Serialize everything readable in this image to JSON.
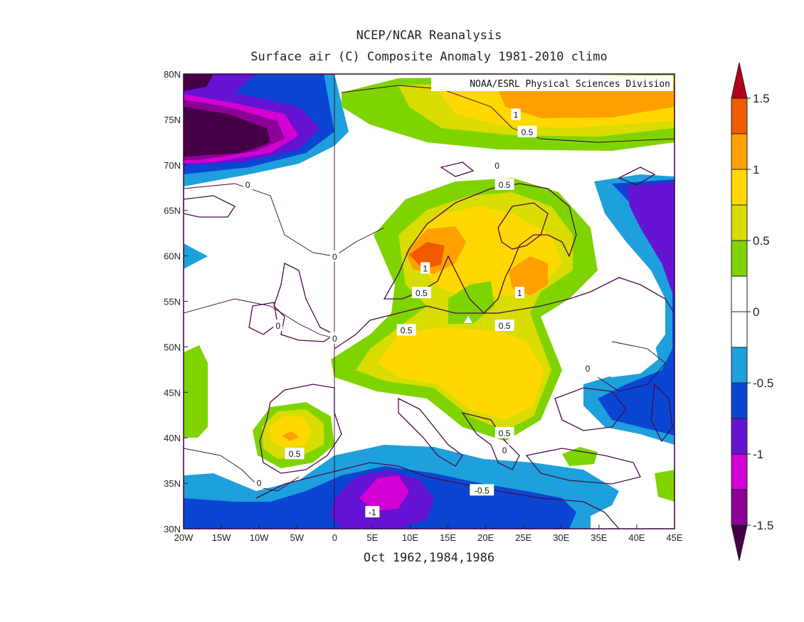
{
  "title": {
    "line1": "NCEP/NCAR Reanalysis",
    "line2": "Surface air (C) Composite Anomaly 1981-2010 climo"
  },
  "footer": "Oct 1962,1984,1986",
  "credit": "NOAA/ESRL Physical Sciences Division",
  "map": {
    "lon_ticks": [
      "20W",
      "15W",
      "10W",
      "5W",
      "0",
      "5E",
      "10E",
      "15E",
      "20E",
      "25E",
      "30E",
      "35E",
      "40E",
      "45E"
    ],
    "lat_ticks": [
      "80N",
      "75N",
      "70N",
      "65N",
      "60N",
      "55N",
      "50N",
      "45N",
      "40N",
      "35N",
      "30N"
    ],
    "contour_labels": [
      {
        "text": "1",
        "lon": 24,
        "lat": 75.5
      },
      {
        "text": "0.5",
        "lon": 25.5,
        "lat": 73.6
      },
      {
        "text": "0",
        "lon": 21.5,
        "lat": 69.9
      },
      {
        "text": "0.5",
        "lon": 22.5,
        "lat": 67.8
      },
      {
        "text": "0",
        "lon": -11.5,
        "lat": 67.8
      },
      {
        "text": "0",
        "lon": 0,
        "lat": 59.9
      },
      {
        "text": "1",
        "lon": 12,
        "lat": 58.6
      },
      {
        "text": "0.5",
        "lon": 11.5,
        "lat": 55.9
      },
      {
        "text": "1",
        "lon": 24.5,
        "lat": 55.9
      },
      {
        "text": "0.5",
        "lon": 9.5,
        "lat": 51.8
      },
      {
        "text": "0.5",
        "lon": 22.5,
        "lat": 52.3
      },
      {
        "text": "0",
        "lon": -7.5,
        "lat": 52.3
      },
      {
        "text": "0",
        "lon": 0,
        "lat": 50.9
      },
      {
        "text": "0",
        "lon": 33.5,
        "lat": 47.6
      },
      {
        "text": "0.5",
        "lon": 22.5,
        "lat": 40.5
      },
      {
        "text": "0",
        "lon": 22.5,
        "lat": 38.6
      },
      {
        "text": "0.5",
        "lon": -5.3,
        "lat": 38.2
      },
      {
        "text": "0",
        "lon": -10,
        "lat": 35.0
      },
      {
        "text": "-0.5",
        "lon": 19.5,
        "lat": 34.2
      },
      {
        "text": "-1",
        "lon": 5,
        "lat": 31.8
      }
    ]
  },
  "colorbar": {
    "labels": [
      "1.5",
      "1",
      "0.5",
      "0",
      "-0.5",
      "-1",
      "-1.5"
    ],
    "colors": [
      "#b5001a",
      "#f05a00",
      "#ffa000",
      "#ffd800",
      "#d8dc00",
      "#7fd400",
      "#ffffff",
      "#ffffff",
      "#1ea0dc",
      "#0a46d2",
      "#6414d2",
      "#d200d2",
      "#8c0096",
      "#460046"
    ]
  },
  "colors": {
    "cold_darkest": "#460046",
    "cold_dark": "#8c0096",
    "magenta": "#d200d2",
    "violet": "#6414d2",
    "blue": "#0a46d2",
    "light_blue": "#1ea0dc",
    "green": "#7fd400",
    "yellow_green": "#d8dc00",
    "yellow": "#ffd800",
    "orange": "#ffa000",
    "dark_orange": "#f05a00"
  }
}
